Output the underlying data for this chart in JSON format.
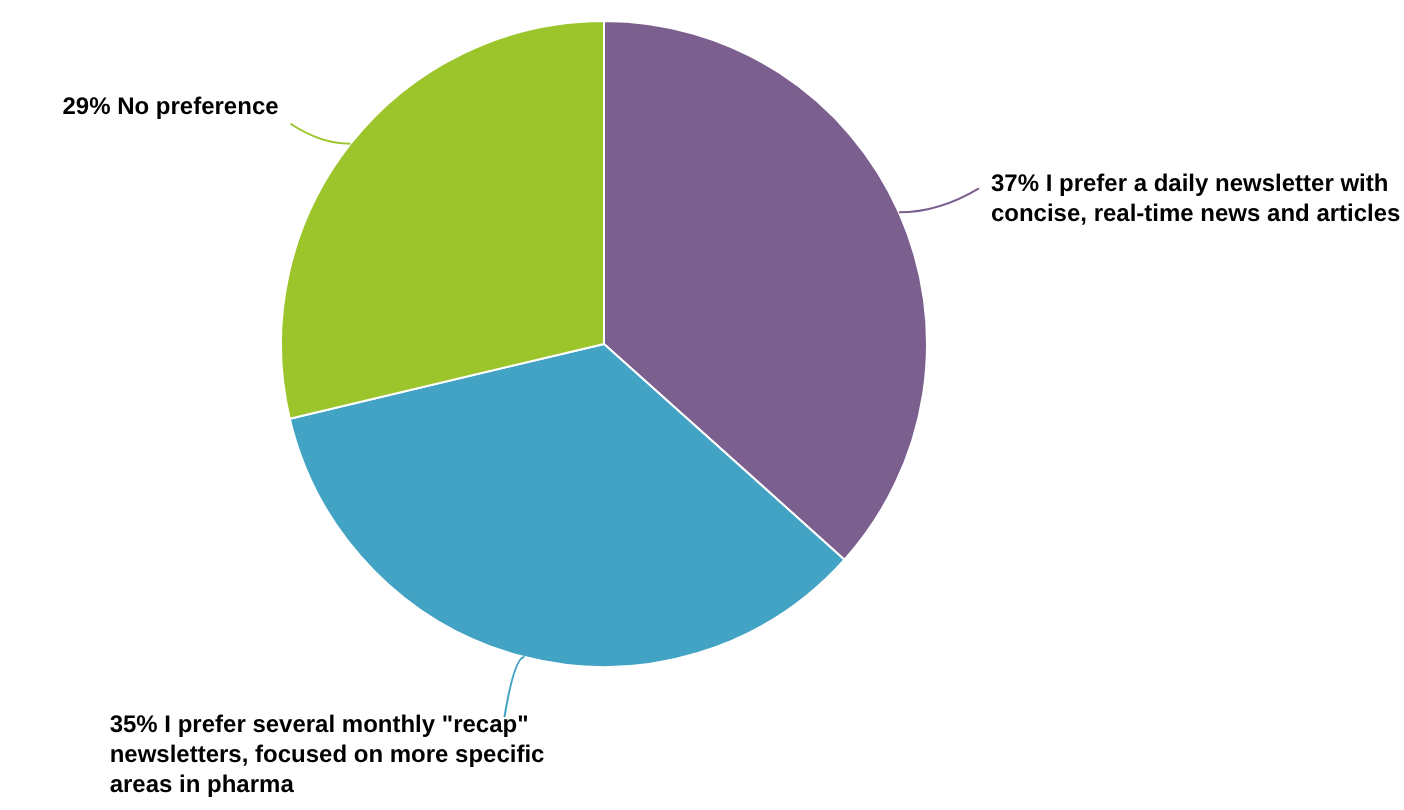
{
  "chart_data": {
    "type": "pie",
    "categories": [
      "I prefer a daily newsletter with concise, real-time news and articles",
      "I prefer several monthly \"recap\" newsletters, focused on more specific areas in pharma",
      "No preference"
    ],
    "values": [
      37,
      35,
      29
    ],
    "value_labels": [
      "37%",
      "35%",
      "29%"
    ],
    "colors": [
      "#7b5f8f",
      "#43a3c4",
      "#9bc52a"
    ],
    "legend": false
  }
}
